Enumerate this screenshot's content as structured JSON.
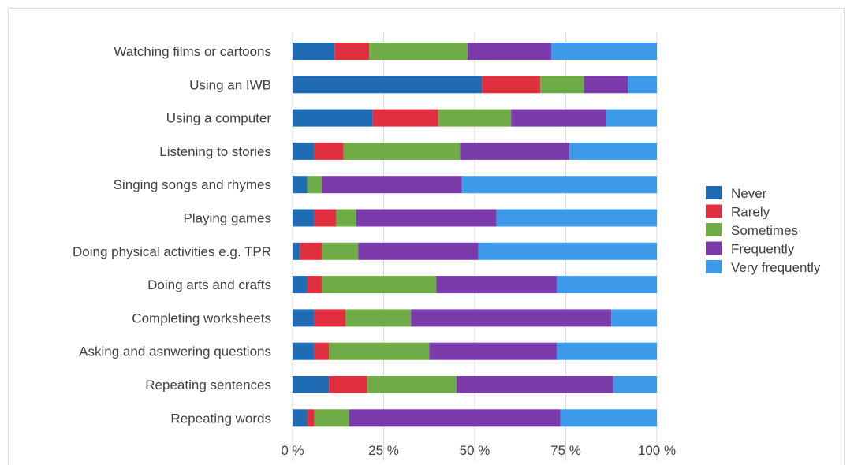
{
  "chart_data": {
    "type": "bar",
    "orientation": "horizontal",
    "stacked": "percent",
    "title": "",
    "xlabel": "",
    "ylabel": "",
    "xlim": [
      0,
      100
    ],
    "x_ticks": [
      "0 %",
      "25 %",
      "50 %",
      "75 %",
      "100 %"
    ],
    "grid": true,
    "legend_position": "right",
    "categories": [
      "Watching films or cartoons",
      "Using an IWB",
      "Using a computer",
      "Listening to stories",
      "Singing songs and rhymes",
      "Playing games",
      "Doing physical activities e.g. TPR",
      "Doing arts and crafts",
      "Completing worksheets",
      "Asking and asnwering questions",
      "Repeating sentences",
      "Repeating words"
    ],
    "series": [
      {
        "name": "Never",
        "color": "#1f6cb5",
        "values": [
          11.5,
          52,
          22,
          6,
          4,
          6,
          2,
          4,
          6,
          6,
          10,
          4
        ]
      },
      {
        "name": "Rarely",
        "color": "#e03040",
        "values": [
          9.5,
          16,
          18,
          8,
          0,
          6,
          6,
          4,
          8.5,
          4,
          10.5,
          2
        ]
      },
      {
        "name": "Sometimes",
        "color": "#6fac47",
        "values": [
          27,
          12,
          20,
          32,
          4,
          5.5,
          10,
          31.5,
          18,
          27.5,
          24.5,
          9.5
        ]
      },
      {
        "name": "Frequently",
        "color": "#7b3bab",
        "values": [
          23,
          12,
          26,
          30,
          38.5,
          38.5,
          33,
          33,
          55,
          35,
          43,
          58
        ]
      },
      {
        "name": "Very frequently",
        "color": "#3d9ae8",
        "values": [
          29,
          8,
          14,
          24,
          53.5,
          44,
          49,
          27.5,
          12.5,
          27.5,
          12,
          26.5
        ]
      }
    ]
  }
}
